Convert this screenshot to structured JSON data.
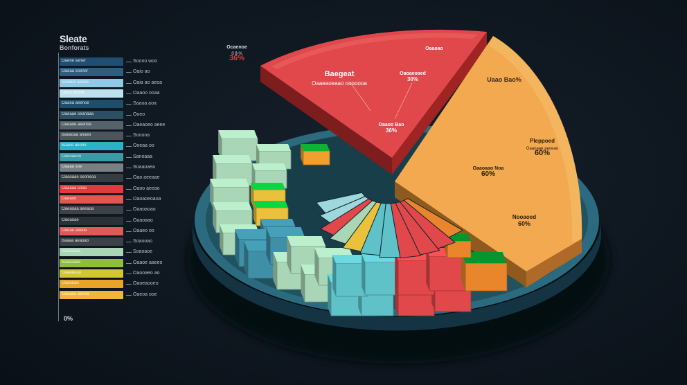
{
  "legend": {
    "title": "Sleate",
    "subtitle": "Bonforats",
    "footer": "0%",
    "rows": [
      {
        "bar_label": "Oaene sener",
        "text": "Soono woo",
        "color": "#1f4e72"
      },
      {
        "bar_label": "Oaeaa soener",
        "text": "Oaio ao",
        "color": "#2a5f80"
      },
      {
        "bar_label": "Sooeoo aenoe",
        "text": "Oaia ao aeoa",
        "color": "#8fc9e6"
      },
      {
        "bar_label": "Oaoo soone",
        "text": "Oaaoo ooaa",
        "color": "#bfe1ee"
      },
      {
        "bar_label": "Oaaoa aeenoe",
        "text": "Saaoa aoa",
        "color": "#1d4f6d"
      },
      {
        "bar_label": "Oaeaae seanaaa",
        "text": "Ooeo",
        "color": "#2d4f63"
      },
      {
        "bar_label": "Oaeaoe aeenoe",
        "text": "Oaeaoeo aeee",
        "color": "#56626a"
      },
      {
        "bar_label": "Baeaoaa anaeo",
        "text": "Sooona",
        "color": "#4c555d"
      },
      {
        "bar_label": "Baaoe aeone",
        "text": "Ooeaa oo",
        "color": "#2fb0c9"
      },
      {
        "bar_label": "Oaooaeoo",
        "text": "Sanoaaa",
        "color": "#3a9aa5"
      },
      {
        "bar_label": "Oaaaa soe",
        "text": "Soaaoaea",
        "color": "#7a7f84"
      },
      {
        "bar_label": "Oaaoaae seoneoa",
        "text": "Oao aeeaae",
        "color": "#353c42"
      },
      {
        "bar_label": "Oaaaaa soae",
        "text": "Oaoo aeeao",
        "color": "#e2393f"
      },
      {
        "bar_label": "Oaeaoo",
        "text": "Oaoaoeoaoa",
        "color": "#e25650"
      },
      {
        "bar_label": "Oaeaoaa aeeaoa",
        "text": "Oaaoaoao",
        "color": "#3c4248"
      },
      {
        "bar_label": "Oaoaoae",
        "text": "Oaaoaao",
        "color": "#2a3238"
      },
      {
        "bar_label": "Oaoae aeeoe",
        "text": "Oaaeo oo",
        "color": "#df5a57"
      },
      {
        "bar_label": "Baaaa aeaoao",
        "text": "Soaooao",
        "color": "#3c4248"
      },
      {
        "bar_label": "Saooaoaa",
        "text": "Soaoaoe",
        "color": "#a8d6b6"
      },
      {
        "bar_label": "Baaoaaoe",
        "text": "Oaaoe aaeeo",
        "color": "#8fbf3a"
      },
      {
        "bar_label": "Oaaeeoao",
        "text": "Oaooaeo ao",
        "color": "#d2c637"
      },
      {
        "bar_label": "Oaaoeao",
        "text": "Oaoeaooeo",
        "color": "#e8a426"
      },
      {
        "bar_label": "Oaaaoa aeeaa",
        "text": "Oaeoa ooe",
        "color": "#f2b53a"
      }
    ]
  },
  "annotations": [
    {
      "id": "ann-red-top-left",
      "line1": "Ocaenoe",
      "line2": "0 $ %",
      "value": "36%",
      "color": "#e63a3a"
    },
    {
      "id": "ann-red-head",
      "line1": "Oaaoao",
      "line2": "",
      "value": "",
      "color": "#ffffff"
    },
    {
      "id": "ann-red-big",
      "line1": "Baegeat",
      "line2": "Oaaeaoeaao ooooooa",
      "value": "",
      "color": "#ffffff"
    },
    {
      "id": "ann-red-mid",
      "line1": "Oaoaeoaed",
      "line2": "",
      "value": "30%",
      "color": "#ffffff"
    },
    {
      "id": "ann-red-low",
      "line1": "Oaaoo Bao",
      "line2": "",
      "value": "36%",
      "color": "#ffffff"
    },
    {
      "id": "ann-orange-head",
      "line1": "Uaao Bao%",
      "line2": "",
      "value": "",
      "color": "#3a2a15"
    },
    {
      "id": "ann-orange-1",
      "line1": "Pleppoed",
      "line2": "Oaaoaae aeoeao",
      "value": "60%",
      "color": "#2a1c0c"
    },
    {
      "id": "ann-orange-2",
      "line1": "Oaaoaao Noa",
      "line2": "",
      "value": "60%",
      "color": "#2a1c0c"
    },
    {
      "id": "ann-orange-3",
      "line1": "Nooaoed",
      "line2": "",
      "value": "60%",
      "color": "#2a1c0c"
    }
  ],
  "chart_data": {
    "type": "pie",
    "title": "",
    "slices": [
      {
        "label": "Baegeat",
        "value": 30,
        "color": "#e1484b"
      },
      {
        "label": "Pleppoed",
        "value": 60,
        "color": "#f2a950"
      }
    ],
    "legend_placement": "left"
  },
  "colors": {
    "background": "#0e161f",
    "plate": "#2c6a7f",
    "red": "#e1484b",
    "orange": "#f2a950",
    "mint": "#a8d6b6",
    "teal": "#5fc2c9",
    "steel": "#3f8fa6",
    "yellow": "#e9c13a"
  }
}
